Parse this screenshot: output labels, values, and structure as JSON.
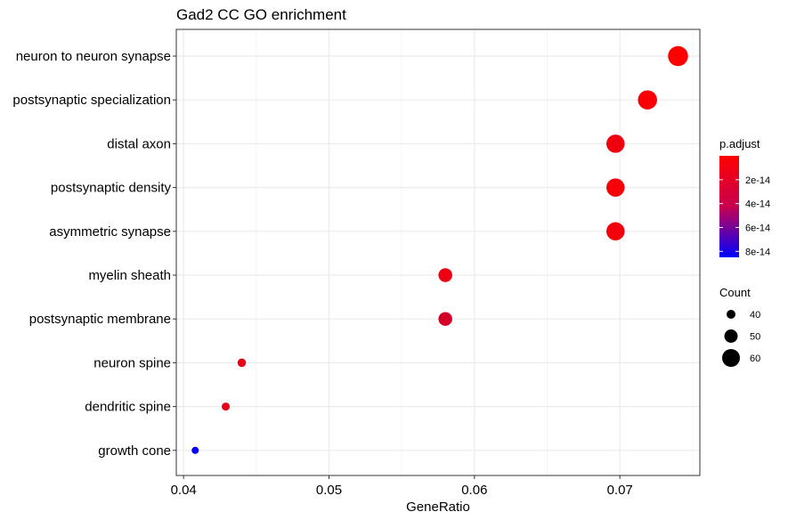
{
  "chart_data": {
    "type": "scatter",
    "title": "Gad2 CC GO enrichment",
    "xlabel": "GeneRatio",
    "ylabel": "",
    "xlim": [
      0.0395,
      0.0755
    ],
    "xticks": [
      {
        "value": 0.04,
        "label": "0.04"
      },
      {
        "value": 0.05,
        "label": "0.05"
      },
      {
        "value": 0.06,
        "label": "0.06"
      },
      {
        "value": 0.07,
        "label": "0.07"
      }
    ],
    "grid": true,
    "legend_position": "right",
    "categories": [
      "neuron to neuron synapse",
      "postsynaptic specialization",
      "distal axon",
      "postsynaptic density",
      "asymmetric synapse",
      "myelin sheath",
      "postsynaptic membrane",
      "neuron spine",
      "dendritic spine",
      "growth cone"
    ],
    "points": [
      {
        "term": "neuron to neuron synapse",
        "gene_ratio": 0.074,
        "count": 65,
        "p_adjust": 0.0
      },
      {
        "term": "postsynaptic specialization",
        "gene_ratio": 0.0719,
        "count": 63,
        "p_adjust": 2e-15
      },
      {
        "term": "distal axon",
        "gene_ratio": 0.0697,
        "count": 61,
        "p_adjust": 5e-15
      },
      {
        "term": "postsynaptic density",
        "gene_ratio": 0.0697,
        "count": 61,
        "p_adjust": 3e-15
      },
      {
        "term": "asymmetric synapse",
        "gene_ratio": 0.0697,
        "count": 61,
        "p_adjust": 4e-15
      },
      {
        "term": "myelin sheath",
        "gene_ratio": 0.058,
        "count": 51,
        "p_adjust": 6e-15
      },
      {
        "term": "postsynaptic membrane",
        "gene_ratio": 0.058,
        "count": 51,
        "p_adjust": 1.4e-14
      },
      {
        "term": "neuron spine",
        "gene_ratio": 0.044,
        "count": 39,
        "p_adjust": 7e-15
      },
      {
        "term": "dendritic spine",
        "gene_ratio": 0.0429,
        "count": 38,
        "p_adjust": 8e-15
      },
      {
        "term": "growth cone",
        "gene_ratio": 0.0408,
        "count": 36,
        "p_adjust": 8.2e-14
      }
    ],
    "color_legend": {
      "title": "p.adjust",
      "low_color": "#FF0000",
      "high_color": "#0000FF",
      "range": [
        0.0,
        8.5e-14
      ],
      "ticks": [
        {
          "value": 2e-14,
          "label": "2e-14"
        },
        {
          "value": 4e-14,
          "label": "4e-14"
        },
        {
          "value": 6e-14,
          "label": "6e-14"
        },
        {
          "value": 8e-14,
          "label": "8e-14"
        }
      ]
    },
    "size_legend": {
      "title": "Count",
      "entries": [
        {
          "value": 40,
          "label": "40"
        },
        {
          "value": 50,
          "label": "50"
        },
        {
          "value": 60,
          "label": "60"
        }
      ]
    }
  }
}
